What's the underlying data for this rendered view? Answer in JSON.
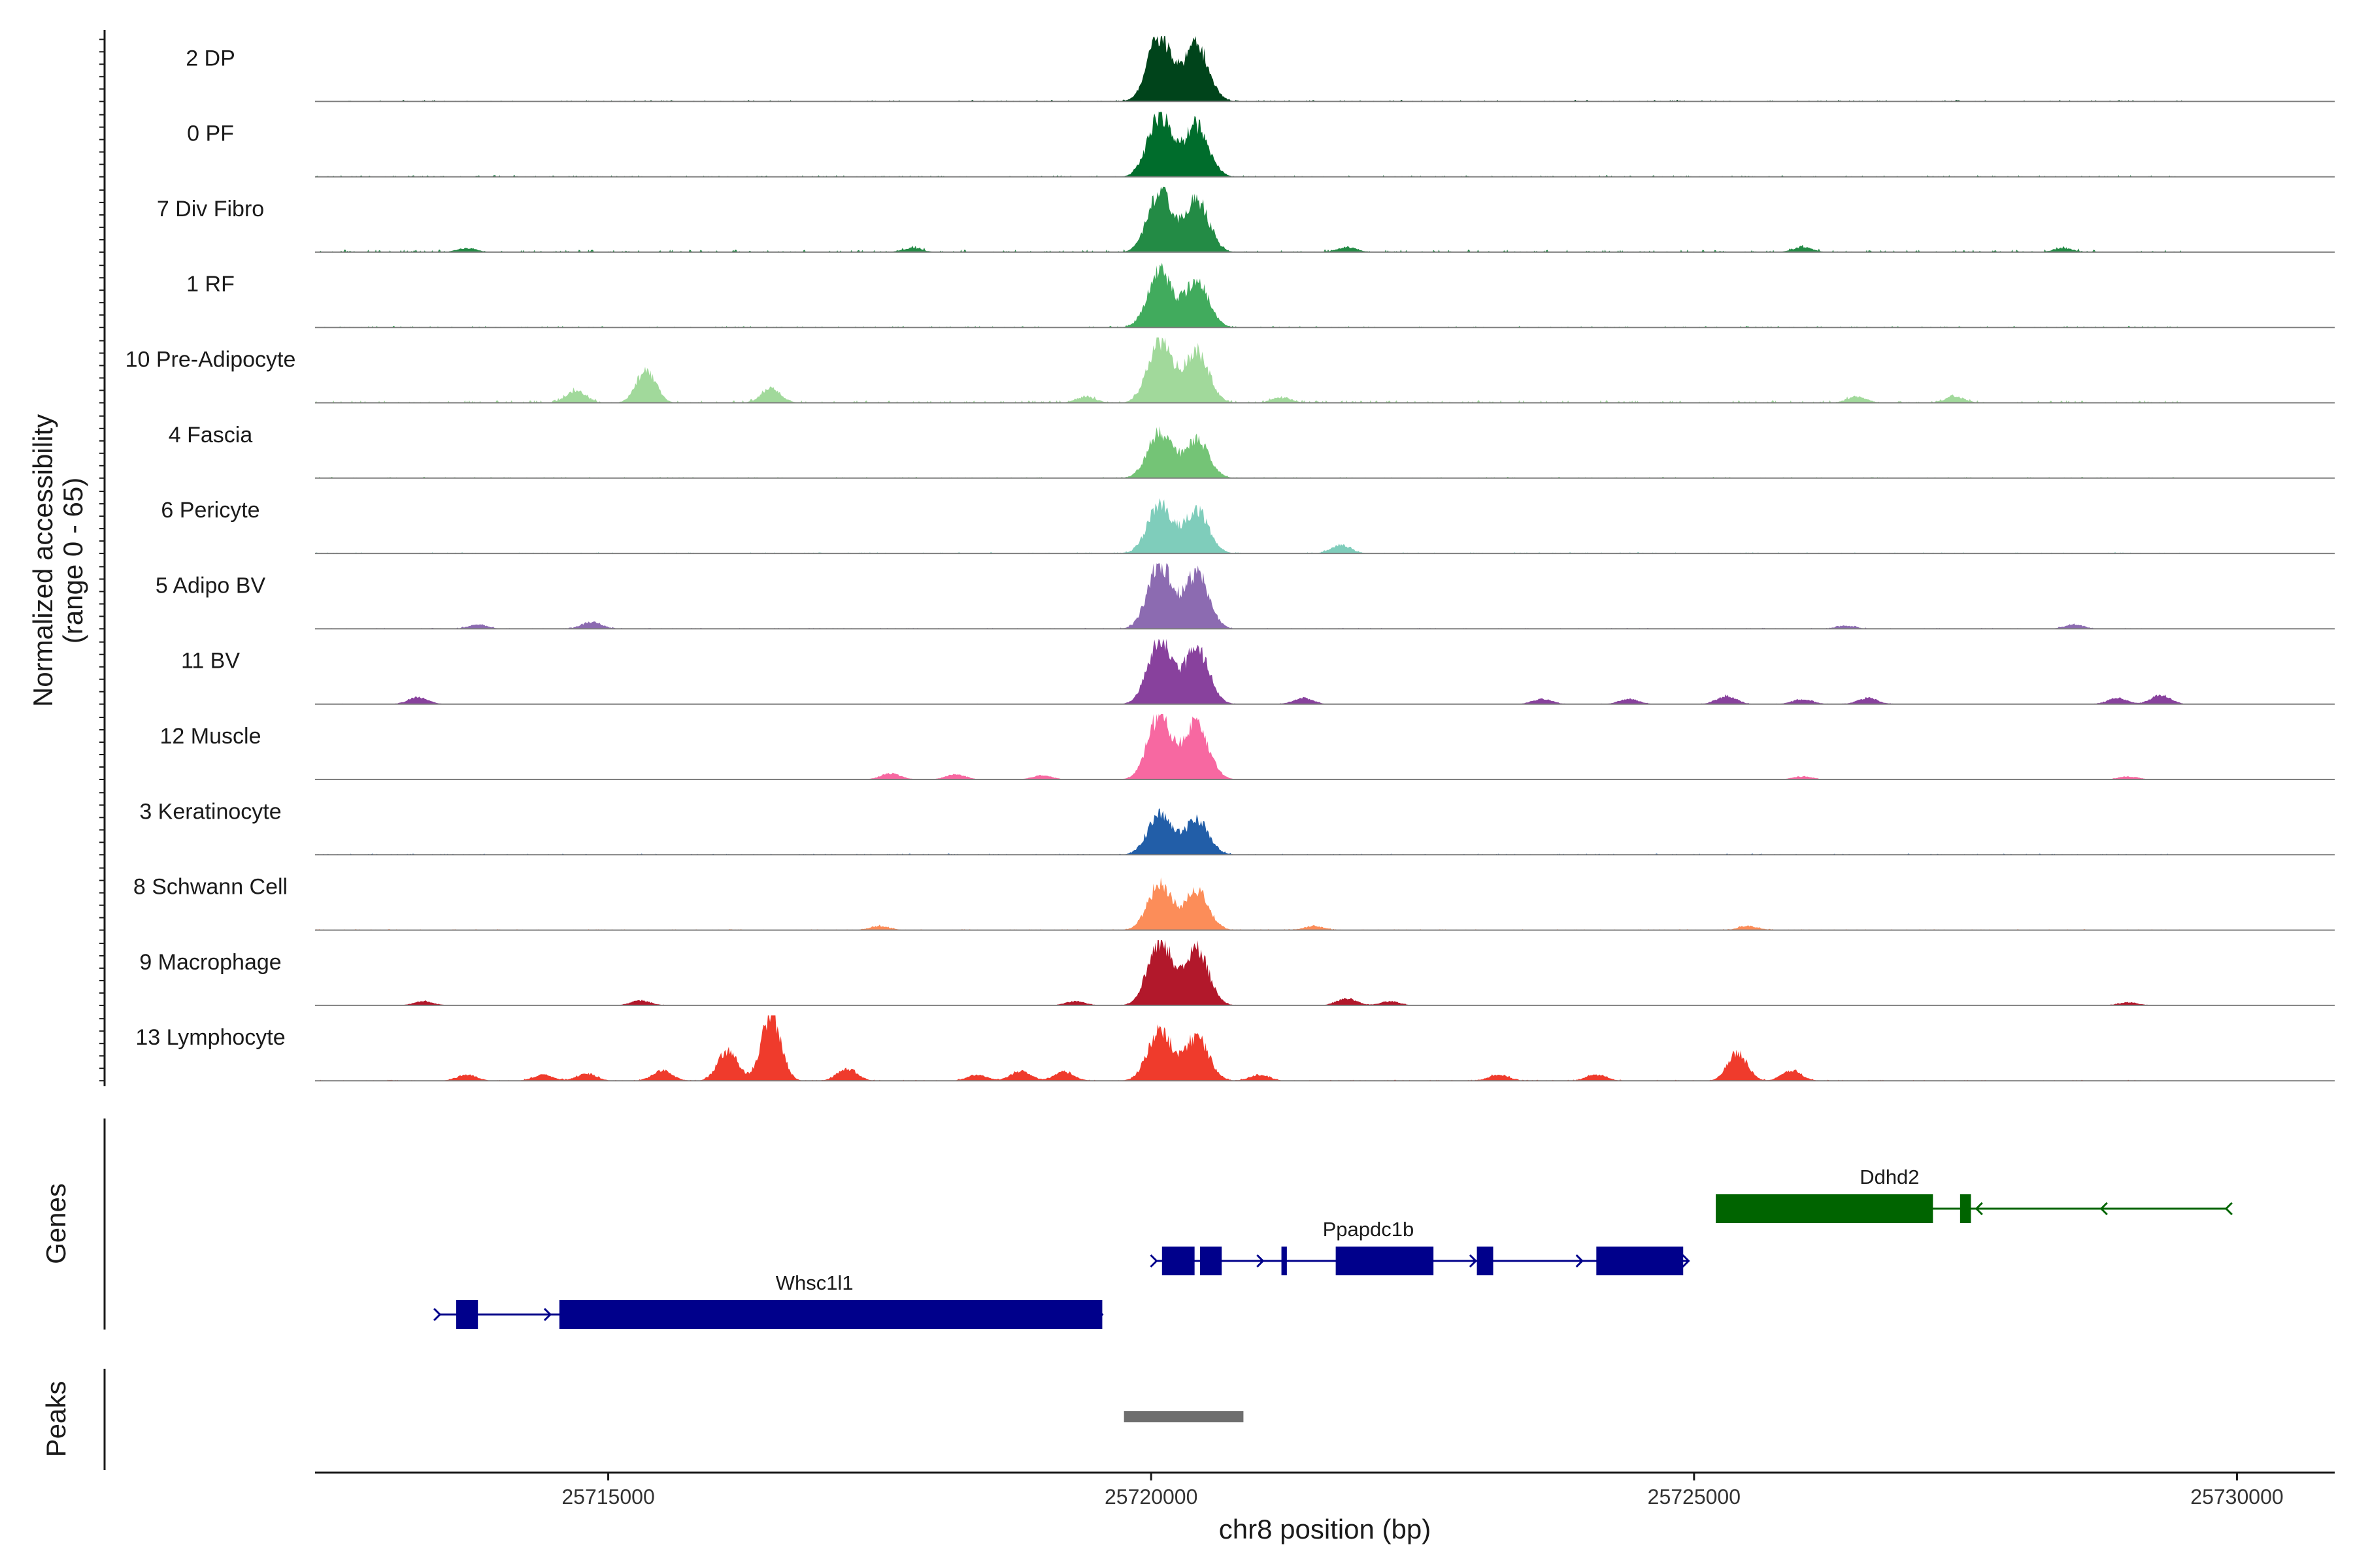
{
  "chart_data": {
    "type": "area",
    "title": "",
    "xlabel": "chr8 position (bp)",
    "ylabel_line1": "Normalized accessibility",
    "ylabel_line2": "(range 0 - 65)",
    "y_range": [
      0,
      65
    ],
    "xlim": [
      25712300,
      25730900
    ],
    "x_ticks": [
      25715000,
      25720000,
      25725000,
      25730000
    ],
    "x_tick_labels": [
      "25715000",
      "25720000",
      "25725000",
      "25730000"
    ],
    "main_peaks": [
      {
        "center": 25720080,
        "sigma": 110,
        "rel": 1.0
      },
      {
        "center": 25720420,
        "sigma": 110,
        "rel": 0.85
      }
    ],
    "tracks": [
      {
        "label": "2 DP",
        "color": "#00441b",
        "peak_height": 65,
        "bg_level": 1.5,
        "secondary": []
      },
      {
        "label": "0 PF",
        "color": "#006d2c",
        "peak_height": 60,
        "bg_level": 1.5,
        "secondary": []
      },
      {
        "label": "7 Div Fibro",
        "color": "#238b45",
        "peak_height": 60,
        "bg_level": 2.5,
        "secondary": [
          {
            "center": 25713700,
            "height": 4
          },
          {
            "center": 25717800,
            "height": 4
          },
          {
            "center": 25721800,
            "height": 5
          },
          {
            "center": 25726000,
            "height": 5
          },
          {
            "center": 25728400,
            "height": 4
          }
        ]
      },
      {
        "label": "1 RF",
        "color": "#41ab5d",
        "peak_height": 55,
        "bg_level": 1.5,
        "secondary": []
      },
      {
        "label": "10 Pre-Adipocyte",
        "color": "#a1d99b",
        "peak_height": 60,
        "bg_level": 2.5,
        "secondary": [
          {
            "center": 25714700,
            "height": 12
          },
          {
            "center": 25715350,
            "height": 32
          },
          {
            "center": 25716500,
            "height": 14
          },
          {
            "center": 25719400,
            "height": 6
          },
          {
            "center": 25721200,
            "height": 5
          },
          {
            "center": 25726500,
            "height": 6
          },
          {
            "center": 25727400,
            "height": 6
          }
        ]
      },
      {
        "label": "4 Fascia",
        "color": "#74c476",
        "peak_height": 45,
        "bg_level": 1.2,
        "secondary": []
      },
      {
        "label": "6 Pericyte",
        "color": "#7fcdbb",
        "peak_height": 50,
        "bg_level": 1.2,
        "secondary": [
          {
            "center": 25721750,
            "height": 8
          }
        ]
      },
      {
        "label": "5 Adipo BV",
        "color": "#8c6bb1",
        "peak_height": 65,
        "bg_level": 1.0,
        "secondary": [
          {
            "center": 25713800,
            "height": 4
          },
          {
            "center": 25714850,
            "height": 7
          },
          {
            "center": 25726400,
            "height": 3
          },
          {
            "center": 25728500,
            "height": 4
          }
        ]
      },
      {
        "label": "11 BV",
        "color": "#88419d",
        "peak_height": 65,
        "bg_level": 0.5,
        "secondary": [
          {
            "center": 25713250,
            "height": 7
          },
          {
            "center": 25721400,
            "height": 6
          },
          {
            "center": 25723600,
            "height": 5
          },
          {
            "center": 25724400,
            "height": 5
          },
          {
            "center": 25725300,
            "height": 8
          },
          {
            "center": 25726000,
            "height": 5
          },
          {
            "center": 25726600,
            "height": 6
          },
          {
            "center": 25728900,
            "height": 6
          },
          {
            "center": 25729300,
            "height": 9
          }
        ]
      },
      {
        "label": "12 Muscle",
        "color": "#f768a1",
        "peak_height": 65,
        "bg_level": 0.3,
        "secondary": [
          {
            "center": 25717600,
            "height": 6
          },
          {
            "center": 25718200,
            "height": 5
          },
          {
            "center": 25719000,
            "height": 4
          },
          {
            "center": 25726000,
            "height": 3
          },
          {
            "center": 25729000,
            "height": 3
          }
        ]
      },
      {
        "label": "3 Keratinocyte",
        "color": "#225ea8",
        "peak_height": 40,
        "bg_level": 1.2,
        "secondary": []
      },
      {
        "label": "8 Schwann Cell",
        "color": "#fc8d59",
        "peak_height": 45,
        "bg_level": 1.0,
        "secondary": [
          {
            "center": 25717500,
            "height": 4
          },
          {
            "center": 25721500,
            "height": 4
          },
          {
            "center": 25725500,
            "height": 4
          }
        ]
      },
      {
        "label": "9 Macrophage",
        "color": "#b2182b",
        "peak_height": 65,
        "bg_level": 0.5,
        "secondary": [
          {
            "center": 25713300,
            "height": 4
          },
          {
            "center": 25715300,
            "height": 5
          },
          {
            "center": 25719300,
            "height": 4
          },
          {
            "center": 25721800,
            "height": 7
          },
          {
            "center": 25722200,
            "height": 4
          },
          {
            "center": 25729000,
            "height": 3
          }
        ]
      },
      {
        "label": "13 Lymphocyte",
        "color": "#ef3b2c",
        "peak_height": 50,
        "bg_level": 1.0,
        "secondary": [
          {
            "center": 25713700,
            "height": 6
          },
          {
            "center": 25714400,
            "height": 6
          },
          {
            "center": 25714800,
            "height": 7
          },
          {
            "center": 25715500,
            "height": 10
          },
          {
            "center": 25716100,
            "height": 30
          },
          {
            "center": 25716500,
            "height": 65
          },
          {
            "center": 25717200,
            "height": 12
          },
          {
            "center": 25718400,
            "height": 6
          },
          {
            "center": 25718800,
            "height": 10
          },
          {
            "center": 25719200,
            "height": 9
          },
          {
            "center": 25721000,
            "height": 6
          },
          {
            "center": 25723200,
            "height": 6
          },
          {
            "center": 25724100,
            "height": 6
          },
          {
            "center": 25725400,
            "height": 28
          },
          {
            "center": 25725900,
            "height": 10
          }
        ]
      }
    ],
    "genes_panel_label": "Genes",
    "peaks_panel_label": "Peaks",
    "genes": [
      {
        "name": "Whsc1l1",
        "strand": "+",
        "color": "#00008b",
        "row": 3,
        "start": 25713450,
        "end": 25719550,
        "label_pos": 25716900,
        "exons": [
          [
            25713600,
            25713800
          ],
          [
            25714550,
            25719550
          ]
        ]
      },
      {
        "name": "Ppapdc1b",
        "strand": "+",
        "color": "#00008b",
        "row": 2,
        "start": 25720050,
        "end": 25724950,
        "label_pos": 25722000,
        "exons": [
          [
            25720100,
            25720400
          ],
          [
            25720450,
            25720650
          ],
          [
            25721200,
            25721250
          ],
          [
            25721700,
            25722600
          ],
          [
            25723000,
            25723150
          ],
          [
            25724100,
            25724900
          ]
        ]
      },
      {
        "name": "Ddhd2",
        "strand": "-",
        "color": "#006400",
        "row": 1,
        "start": 25725300,
        "end": 25729900,
        "label_pos": 25726800,
        "exons": [
          [
            25725200,
            25727200
          ],
          [
            25727450,
            25727550
          ]
        ]
      }
    ],
    "peaks": [
      {
        "start": 25719750,
        "end": 25720850,
        "color": "#6e6e6e"
      }
    ]
  }
}
